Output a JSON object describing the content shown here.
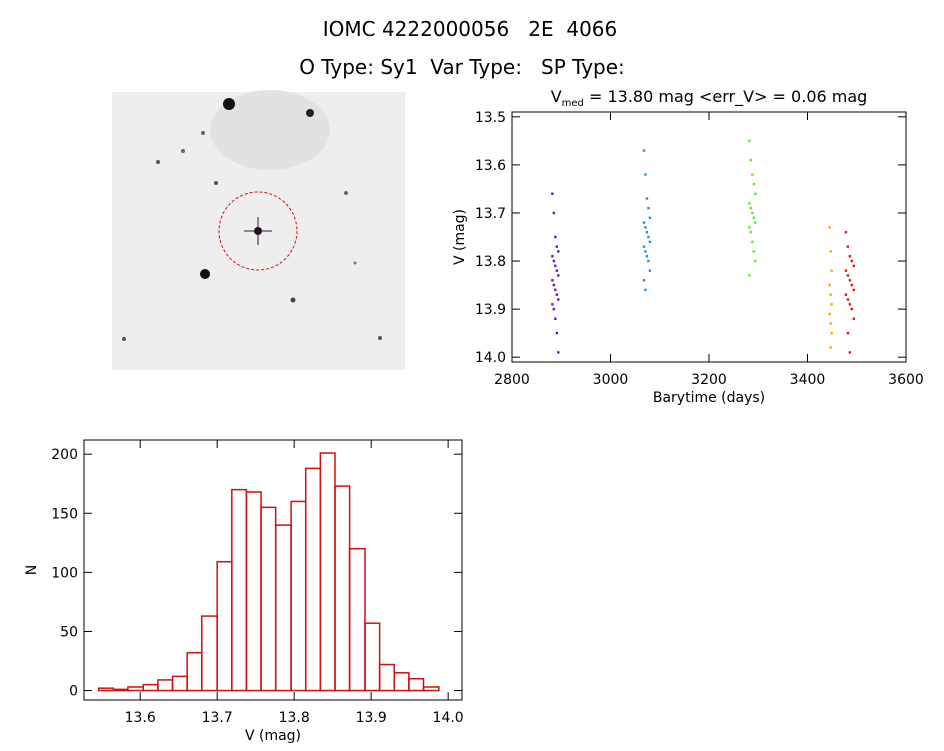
{
  "header": {
    "title": "IOMC 4222000056   2E  4066",
    "subtitle": "O Type: Sy1  Var Type:   SP Type:"
  },
  "chart_data": [
    {
      "type": "scatter",
      "title": [
        "V",
        "med",
        " = 13.80 mag <err_V> = 0.06 mag"
      ],
      "x_label": "Barytime (days)",
      "y_label": "V (mag)",
      "xlim": [
        2800,
        3600
      ],
      "xticks": [
        2800,
        3000,
        3200,
        3400,
        3600
      ],
      "ylim": [
        13.49,
        14.01
      ],
      "y_inverted": true,
      "yticks": [
        13.5,
        13.6,
        13.7,
        13.8,
        13.9,
        {
          "value": 14,
          "label": "14.0"
        }
      ],
      "series": [
        {
          "color": "#5a1ab0",
          "x": [
            2882,
            2885,
            2888,
            2891,
            2894,
            2882,
            2885,
            2888,
            2891,
            2894,
            2882,
            2885,
            2888,
            2891,
            2894,
            2882,
            2885,
            2888,
            2891,
            2894
          ],
          "y": [
            13.66,
            13.7,
            13.75,
            13.77,
            13.78,
            13.79,
            13.8,
            13.81,
            13.82,
            13.83,
            13.84,
            13.85,
            13.86,
            13.87,
            13.88,
            13.89,
            13.9,
            13.92,
            13.95,
            13.99
          ]
        },
        {
          "color": "#1e90e0",
          "x": [
            3068,
            3071,
            3074,
            3077,
            3080,
            3068,
            3071,
            3074,
            3077,
            3080,
            3068,
            3071,
            3074,
            3077,
            3080,
            3068,
            3071
          ],
          "y": [
            13.57,
            13.62,
            13.67,
            13.69,
            13.71,
            13.72,
            13.73,
            13.74,
            13.75,
            13.76,
            13.77,
            13.78,
            13.79,
            13.8,
            13.82,
            13.84,
            13.86
          ]
        },
        {
          "color": "#5ee62a",
          "x": [
            3282,
            3285,
            3288,
            3291,
            3294,
            3282,
            3285,
            3288,
            3291,
            3294,
            3282,
            3285,
            3288,
            3291,
            3294,
            3282
          ],
          "y": [
            13.55,
            13.59,
            13.62,
            13.64,
            13.66,
            13.68,
            13.69,
            13.7,
            13.71,
            13.72,
            13.73,
            13.74,
            13.76,
            13.78,
            13.8,
            13.83
          ]
        },
        {
          "color": "#f0a800",
          "x": [
            3445,
            3447,
            3449,
            3445,
            3447,
            3449,
            3445,
            3447,
            3449,
            3447
          ],
          "y": [
            13.73,
            13.78,
            13.82,
            13.85,
            13.87,
            13.89,
            13.91,
            13.93,
            13.95,
            13.98
          ]
        },
        {
          "color": "#e81010",
          "x": [
            3478,
            3482,
            3486,
            3490,
            3494,
            3478,
            3482,
            3486,
            3490,
            3494,
            3478,
            3482,
            3486,
            3490,
            3494,
            3482,
            3486
          ],
          "y": [
            13.74,
            13.77,
            13.79,
            13.8,
            13.81,
            13.82,
            13.83,
            13.84,
            13.85,
            13.86,
            13.87,
            13.88,
            13.89,
            13.9,
            13.92,
            13.95,
            13.99
          ]
        }
      ]
    },
    {
      "type": "histogram",
      "x_label": "V (mag)",
      "y_label": "N",
      "color": "#d01010",
      "bins": [
        13.546,
        13.565,
        13.584,
        13.604,
        13.623,
        13.642,
        13.661,
        13.68,
        13.7,
        13.719,
        13.738,
        13.757,
        13.776,
        13.796,
        13.815,
        13.834,
        13.853,
        13.872,
        13.892,
        13.911,
        13.93,
        13.949,
        13.968,
        13.988
      ],
      "counts": [
        2,
        1,
        3,
        5,
        9,
        12,
        32,
        63,
        109,
        170,
        168,
        155,
        140,
        160,
        188,
        201,
        173,
        120,
        57,
        22,
        15,
        10,
        3
      ],
      "xlim": [
        13.527,
        14.018
      ],
      "xticks": [
        13.6,
        13.7,
        13.8,
        13.9,
        {
          "value": 14,
          "label": "14.0"
        }
      ],
      "ylim": [
        -8,
        212
      ],
      "yticks": [
        0,
        50,
        100,
        150,
        200
      ]
    }
  ]
}
